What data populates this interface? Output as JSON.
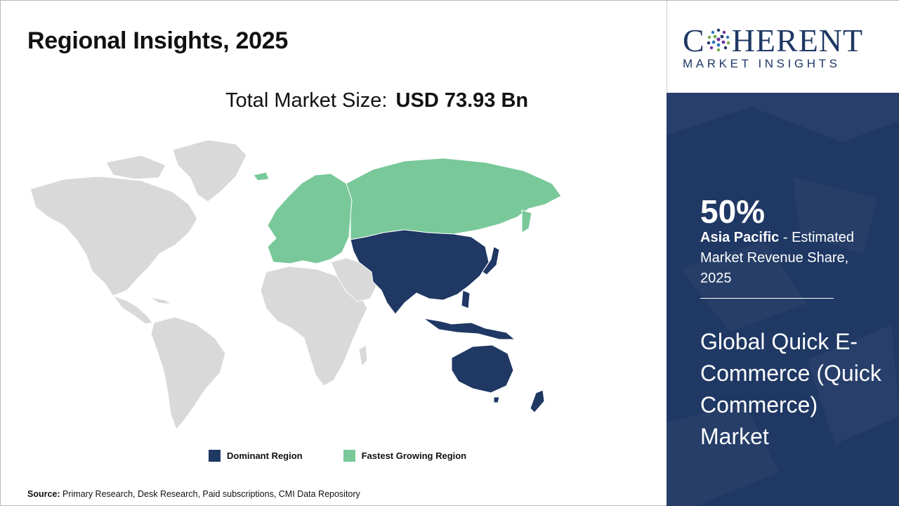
{
  "title": "Regional Insights, 2025",
  "total_market": {
    "label": "Total Market Size:",
    "value": "USD 73.93 Bn"
  },
  "legend": {
    "dominant": {
      "label": "Dominant Region",
      "color": "#1f3864"
    },
    "fastest": {
      "label": "Fastest Growing Region",
      "color": "#78c89a"
    }
  },
  "map": {
    "base_color": "#d9d9d9",
    "dominant_region": "Asia Pacific",
    "fastest_growing_region": "Europe"
  },
  "source": {
    "label": "Source:",
    "text": "Primary Research, Desk Research, Paid subscriptions, CMI Data Repository"
  },
  "logo": {
    "main_pre": "C",
    "main_post": "HERENT",
    "sub": "MARKET INSIGHTS"
  },
  "highlight": {
    "percent": "50%",
    "region": "Asia Pacific",
    "desc": " - Estimated Market Revenue Share, 2025"
  },
  "market_name": "Global Quick E-Commerce (Quick Commerce) Market",
  "colors": {
    "panel": "#1f3864",
    "text_dark": "#111111"
  }
}
